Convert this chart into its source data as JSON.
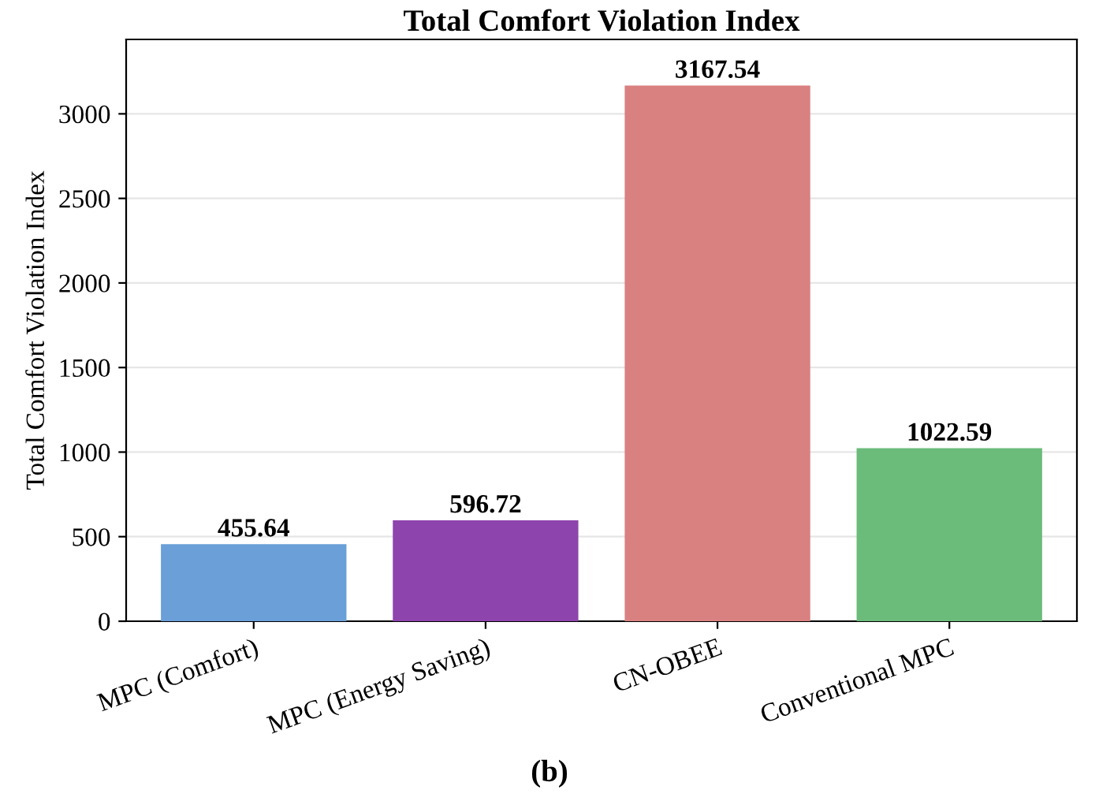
{
  "chart_data": {
    "type": "bar",
    "title": "Total Comfort Violation Index",
    "ylabel": "Total Comfort Violation Index",
    "categories": [
      "MPC (Comfort)",
      "MPC (Energy Saving)",
      "CN-OBEE",
      "Conventional MPC"
    ],
    "values": [
      455.64,
      596.72,
      3167.54,
      1022.59
    ],
    "colors": [
      "#6a9fd8",
      "#8e44ad",
      "#d98080",
      "#6bbb7b"
    ],
    "ylim": [
      0,
      3440
    ],
    "yticks": [
      0,
      500,
      1000,
      1500,
      2000,
      2500,
      3000
    ],
    "grid": "y",
    "data_labels": true,
    "annotations": [
      "(b)"
    ]
  }
}
